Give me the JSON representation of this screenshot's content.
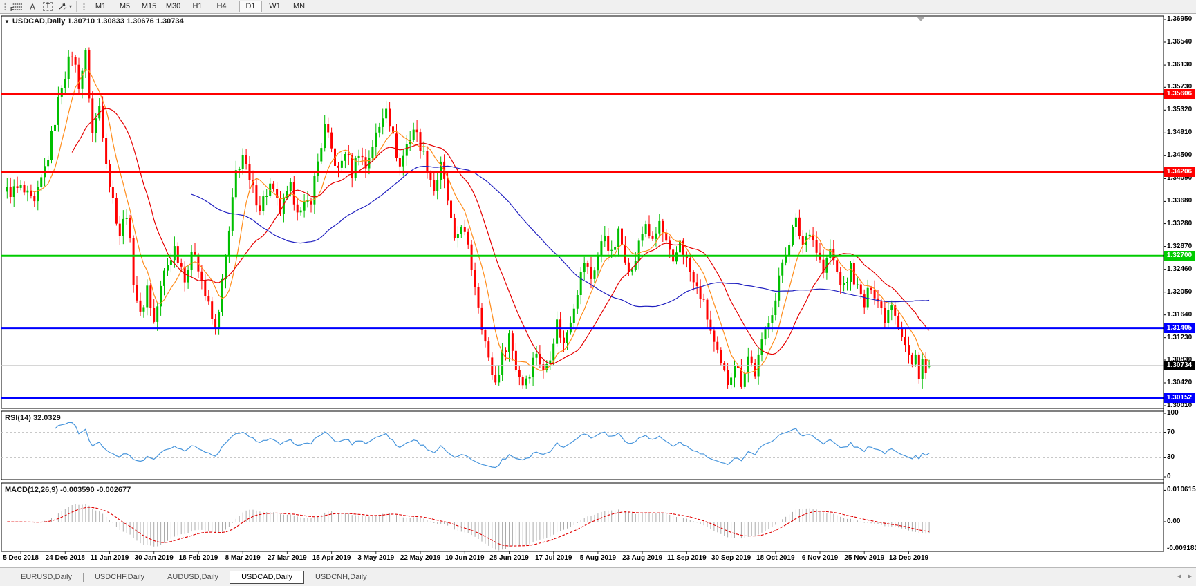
{
  "toolbar": {
    "tools": [
      {
        "name": "fibonacci-grid-tool",
        "label": "F"
      },
      {
        "name": "text-tool",
        "label": "A"
      },
      {
        "name": "text-label-tool",
        "label": "T"
      }
    ],
    "timeframes": [
      "M1",
      "M5",
      "M15",
      "M30",
      "H1",
      "H4",
      "D1",
      "W1",
      "MN"
    ],
    "active_timeframe": "D1"
  },
  "chart_title": {
    "symbol": "USDCAD,Daily",
    "line": "USDCAD,Daily  1.30710 1.30833 1.30676 1.30734",
    "open": "1.30710",
    "high": "1.30833",
    "low": "1.30676",
    "close": "1.30734"
  },
  "chart_data": {
    "type": "candlestick",
    "symbol": "USDCAD",
    "timeframe": "Daily",
    "up_color": "#00bf00",
    "down_color": "#ff0000",
    "price_axis_ticks": [
      "1.36950",
      "1.36540",
      "1.36130",
      "1.35730",
      "1.35320",
      "1.34910",
      "1.34500",
      "1.34090",
      "1.33680",
      "1.33280",
      "1.32870",
      "1.32460",
      "1.32050",
      "1.31640",
      "1.31230",
      "1.30830",
      "1.30420",
      "1.30010"
    ],
    "x_axis_dates": [
      "5 Dec 2018",
      "24 Dec 2018",
      "11 Jan 2019",
      "30 Jan 2019",
      "18 Feb 2019",
      "8 Mar 2019",
      "27 Mar 2019",
      "15 Apr 2019",
      "3 May 2019",
      "22 May 2019",
      "10 Jun 2019",
      "28 Jun 2019",
      "17 Jul 2019",
      "5 Aug 2019",
      "23 Aug 2019",
      "11 Sep 2019",
      "30 Sep 2019",
      "18 Oct 2019",
      "6 Nov 2019",
      "25 Nov 2019",
      "13 Dec 2019"
    ],
    "horizontal_lines": [
      {
        "price": 1.35606,
        "label": "1.35606",
        "color": "#ff0000"
      },
      {
        "price": 1.34206,
        "label": "1.34206",
        "color": "#ff0000"
      },
      {
        "price": 1.327,
        "label": "1.32700",
        "color": "#00cc00"
      },
      {
        "price": 1.31405,
        "label": "1.31405",
        "color": "#0000ff"
      },
      {
        "price": 1.30152,
        "label": "1.30152",
        "color": "#0000ff"
      }
    ],
    "current_price": {
      "value": 1.30734,
      "label": "1.30734",
      "line_color": "#c8c8c8",
      "box_color": "#000000"
    },
    "last_bar": {
      "open": 1.3071,
      "high": 1.30833,
      "low": 1.30676,
      "close": 1.30734
    },
    "moving_averages": [
      {
        "name": "fast-ma",
        "period": 8,
        "color": "#ff8c1a"
      },
      {
        "name": "mid-ma",
        "period": 20,
        "color": "#e60000"
      },
      {
        "name": "slow-ma",
        "period": 55,
        "color": "#2020c0"
      }
    ],
    "bars_total": 271,
    "close_price_anchors": [
      [
        0,
        1.3385
      ],
      [
        4,
        1.339
      ],
      [
        8,
        1.336
      ],
      [
        12,
        1.345
      ],
      [
        16,
        1.358
      ],
      [
        19,
        1.3635
      ],
      [
        21,
        1.358
      ],
      [
        23,
        1.363
      ],
      [
        25,
        1.349
      ],
      [
        27,
        1.354
      ],
      [
        30,
        1.34
      ],
      [
        33,
        1.331
      ],
      [
        35,
        1.335
      ],
      [
        37,
        1.323
      ],
      [
        39,
        1.316
      ],
      [
        41,
        1.3215
      ],
      [
        43,
        1.315
      ],
      [
        46,
        1.324
      ],
      [
        49,
        1.3285
      ],
      [
        52,
        1.3235
      ],
      [
        55,
        1.328
      ],
      [
        58,
        1.32
      ],
      [
        61,
        1.3135
      ],
      [
        63,
        1.322
      ],
      [
        65,
        1.331
      ],
      [
        67,
        1.342
      ],
      [
        69,
        1.345
      ],
      [
        71,
        1.34
      ],
      [
        74,
        1.336
      ],
      [
        77,
        1.3395
      ],
      [
        80,
        1.335
      ],
      [
        83,
        1.339
      ],
      [
        86,
        1.3345
      ],
      [
        89,
        1.3375
      ],
      [
        91,
        1.344
      ],
      [
        93,
        1.35
      ],
      [
        95,
        1.346
      ],
      [
        97,
        1.342
      ],
      [
        99,
        1.346
      ],
      [
        101,
        1.342
      ],
      [
        103,
        1.346
      ],
      [
        105,
        1.343
      ],
      [
        107,
        1.347
      ],
      [
        109,
        1.35
      ],
      [
        111,
        1.3545
      ],
      [
        113,
        1.348
      ],
      [
        115,
        1.343
      ],
      [
        117,
        1.347
      ],
      [
        119,
        1.35
      ],
      [
        121,
        1.347
      ],
      [
        123,
        1.343
      ],
      [
        125,
        1.339
      ],
      [
        127,
        1.343
      ],
      [
        129,
        1.337
      ],
      [
        131,
        1.329
      ],
      [
        133,
        1.333
      ],
      [
        135,
        1.328
      ],
      [
        137,
        1.322
      ],
      [
        139,
        1.315
      ],
      [
        141,
        1.308
      ],
      [
        143,
        1.3042
      ],
      [
        145,
        1.309
      ],
      [
        147,
        1.313
      ],
      [
        149,
        1.307
      ],
      [
        151,
        1.3042
      ],
      [
        153,
        1.3065
      ],
      [
        155,
        1.31
      ],
      [
        157,
        1.306
      ],
      [
        159,
        1.3095
      ],
      [
        161,
        1.315
      ],
      [
        163,
        1.311
      ],
      [
        165,
        1.316
      ],
      [
        167,
        1.321
      ],
      [
        169,
        1.326
      ],
      [
        171,
        1.323
      ],
      [
        173,
        1.327
      ],
      [
        175,
        1.331
      ],
      [
        177,
        1.327
      ],
      [
        179,
        1.331
      ],
      [
        181,
        1.327
      ],
      [
        183,
        1.324
      ],
      [
        185,
        1.329
      ],
      [
        187,
        1.333
      ],
      [
        189,
        1.329
      ],
      [
        191,
        1.333
      ],
      [
        193,
        1.329
      ],
      [
        195,
        1.325
      ],
      [
        197,
        1.33
      ],
      [
        199,
        1.326
      ],
      [
        201,
        1.322
      ],
      [
        203,
        1.32
      ],
      [
        205,
        1.316
      ],
      [
        207,
        1.311
      ],
      [
        209,
        1.307
      ],
      [
        211,
        1.3045
      ],
      [
        213,
        1.308
      ],
      [
        215,
        1.3045
      ],
      [
        217,
        1.309
      ],
      [
        219,
        1.306
      ],
      [
        221,
        1.311
      ],
      [
        223,
        1.316
      ],
      [
        225,
        1.319
      ],
      [
        227,
        1.326
      ],
      [
        229,
        1.33
      ],
      [
        231,
        1.333
      ],
      [
        233,
        1.329
      ],
      [
        235,
        1.332
      ],
      [
        237,
        1.328
      ],
      [
        239,
        1.324
      ],
      [
        241,
        1.328
      ],
      [
        243,
        1.324
      ],
      [
        245,
        1.321
      ],
      [
        247,
        1.325
      ],
      [
        249,
        1.321
      ],
      [
        251,
        1.318
      ],
      [
        253,
        1.322
      ],
      [
        255,
        1.319
      ],
      [
        257,
        1.316
      ],
      [
        259,
        1.319
      ],
      [
        261,
        1.315
      ],
      [
        263,
        1.311
      ],
      [
        265,
        1.307
      ],
      [
        266,
        1.309
      ],
      [
        267,
        1.306
      ],
      [
        268,
        1.3085
      ],
      [
        269,
        1.3055
      ],
      [
        270,
        1.30734
      ]
    ]
  },
  "rsi": {
    "label": "RSI(14) 32.0329",
    "period": 14,
    "value": "32.0329",
    "axis_ticks": [
      "100",
      "70",
      "30",
      "0"
    ],
    "level_lines": [
      70,
      30
    ],
    "line_color": "#4795dc"
  },
  "macd": {
    "label": "MACD(12,26,9) -0.003590 -0.002677",
    "macd_value": "-0.003590",
    "signal_value": "-0.002677",
    "axis_ticks": [
      "0.010615",
      "0.00",
      "-0.009181"
    ],
    "axis_tick_values": [
      0.010615,
      0,
      -0.009181
    ],
    "histogram_color": "#ababab",
    "signal_color": "#e00000"
  },
  "tabs": {
    "items": [
      "EURUSD,Daily",
      "USDCHF,Daily",
      "AUDUSD,Daily",
      "USDCAD,Daily",
      "USDCNH,Daily"
    ],
    "active_index": 3,
    "scroll_left": "◂",
    "scroll_right": "▸"
  }
}
